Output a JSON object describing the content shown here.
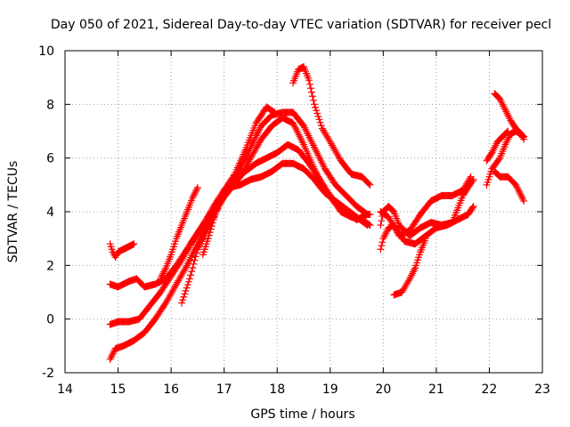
{
  "chart_data": {
    "type": "scatter",
    "title": "Day 050 of 2021, Sidereal Day-to-day VTEC variation (SDTVAR) for receiver pecl",
    "xlabel": "GPS time / hours",
    "ylabel": "SDTVAR / TECUs",
    "xlim": [
      14,
      23
    ],
    "ylim": [
      -2,
      10
    ],
    "xticks": [
      "14",
      "15",
      "16",
      "17",
      "18",
      "19",
      "20",
      "21",
      "22",
      "23"
    ],
    "yticks": [
      "-2",
      "0",
      "2",
      "4",
      "6",
      "8",
      "10"
    ],
    "grid": true,
    "marker": "+",
    "color": "#ff0000",
    "series": [
      {
        "name": "track-1",
        "points": [
          [
            14.85,
            2.8
          ],
          [
            14.9,
            2.5
          ],
          [
            14.95,
            2.3
          ],
          [
            15.0,
            2.5
          ],
          [
            15.1,
            2.6
          ],
          [
            15.2,
            2.7
          ],
          [
            15.3,
            2.8
          ]
        ]
      },
      {
        "name": "track-2",
        "points": [
          [
            14.85,
            1.3
          ],
          [
            15.0,
            1.2
          ],
          [
            15.2,
            1.4
          ],
          [
            15.35,
            1.5
          ],
          [
            15.5,
            1.2
          ],
          [
            15.7,
            1.3
          ],
          [
            15.9,
            1.5
          ],
          [
            16.1,
            2.0
          ],
          [
            16.3,
            2.6
          ],
          [
            16.5,
            3.2
          ],
          [
            16.7,
            3.8
          ],
          [
            16.9,
            4.4
          ],
          [
            17.1,
            4.9
          ],
          [
            17.3,
            5.0
          ],
          [
            17.5,
            5.2
          ],
          [
            17.7,
            5.3
          ],
          [
            17.9,
            5.5
          ],
          [
            18.1,
            5.8
          ],
          [
            18.3,
            5.8
          ],
          [
            18.5,
            5.6
          ],
          [
            18.7,
            5.2
          ],
          [
            18.9,
            4.7
          ],
          [
            19.1,
            4.4
          ],
          [
            19.3,
            4.1
          ],
          [
            19.5,
            3.8
          ],
          [
            19.7,
            3.5
          ]
        ]
      },
      {
        "name": "track-3",
        "points": [
          [
            14.85,
            -0.2
          ],
          [
            15.0,
            -0.1
          ],
          [
            15.2,
            -0.1
          ],
          [
            15.4,
            0.0
          ],
          [
            15.6,
            0.5
          ],
          [
            15.8,
            1.0
          ],
          [
            16.0,
            1.6
          ],
          [
            16.2,
            2.2
          ],
          [
            16.4,
            2.9
          ],
          [
            16.6,
            3.5
          ],
          [
            16.8,
            4.2
          ],
          [
            17.0,
            4.8
          ],
          [
            17.2,
            5.2
          ],
          [
            17.4,
            5.5
          ],
          [
            17.6,
            5.8
          ],
          [
            17.8,
            6.0
          ],
          [
            18.0,
            6.2
          ],
          [
            18.2,
            6.5
          ],
          [
            18.4,
            6.3
          ],
          [
            18.6,
            5.8
          ],
          [
            18.8,
            5.2
          ],
          [
            19.0,
            4.6
          ],
          [
            19.2,
            4.0
          ],
          [
            19.4,
            3.8
          ],
          [
            19.6,
            3.7
          ],
          [
            19.75,
            3.5
          ]
        ]
      },
      {
        "name": "track-4",
        "points": [
          [
            14.85,
            -1.5
          ],
          [
            14.95,
            -1.1
          ],
          [
            15.1,
            -1.0
          ],
          [
            15.3,
            -0.8
          ],
          [
            15.5,
            -0.5
          ],
          [
            15.7,
            0.0
          ],
          [
            15.9,
            0.6
          ],
          [
            16.1,
            1.3
          ],
          [
            16.3,
            2.0
          ],
          [
            16.5,
            2.8
          ],
          [
            16.7,
            3.6
          ],
          [
            16.9,
            4.3
          ],
          [
            17.1,
            4.8
          ],
          [
            17.3,
            5.3
          ],
          [
            17.5,
            6.0
          ],
          [
            17.7,
            6.7
          ],
          [
            17.9,
            7.2
          ],
          [
            18.1,
            7.5
          ],
          [
            18.3,
            7.3
          ],
          [
            18.5,
            6.5
          ],
          [
            18.7,
            5.6
          ],
          [
            18.9,
            4.8
          ],
          [
            19.1,
            4.3
          ],
          [
            19.3,
            4.0
          ],
          [
            19.5,
            3.7
          ],
          [
            19.7,
            3.9
          ]
        ]
      },
      {
        "name": "track-5",
        "points": [
          [
            16.2,
            0.6
          ],
          [
            16.35,
            1.5
          ],
          [
            16.5,
            2.6
          ],
          [
            16.7,
            3.4
          ],
          [
            16.9,
            4.2
          ],
          [
            17.1,
            4.9
          ],
          [
            17.3,
            5.6
          ],
          [
            17.5,
            6.4
          ],
          [
            17.7,
            7.2
          ],
          [
            17.9,
            7.6
          ],
          [
            18.1,
            7.7
          ],
          [
            18.3,
            7.7
          ],
          [
            18.5,
            7.2
          ],
          [
            18.7,
            6.4
          ],
          [
            18.9,
            5.6
          ],
          [
            19.1,
            5.0
          ],
          [
            19.3,
            4.6
          ],
          [
            19.5,
            4.2
          ],
          [
            19.7,
            3.9
          ],
          [
            19.75,
            3.9
          ]
        ]
      },
      {
        "name": "track-6",
        "points": [
          [
            15.8,
            1.5
          ],
          [
            15.9,
            1.9
          ],
          [
            16.0,
            2.4
          ],
          [
            16.1,
            3.0
          ],
          [
            16.2,
            3.5
          ],
          [
            16.3,
            4.0
          ],
          [
            16.4,
            4.5
          ],
          [
            16.5,
            4.9
          ]
        ]
      },
      {
        "name": "track-7",
        "points": [
          [
            16.6,
            2.4
          ],
          [
            16.7,
            3.0
          ],
          [
            16.8,
            3.7
          ],
          [
            16.9,
            4.3
          ],
          [
            17.0,
            4.8
          ],
          [
            17.2,
            5.4
          ],
          [
            17.4,
            6.3
          ],
          [
            17.6,
            7.3
          ],
          [
            17.8,
            7.9
          ],
          [
            17.95,
            7.7
          ]
        ]
      },
      {
        "name": "track-8",
        "points": [
          [
            18.3,
            8.8
          ],
          [
            18.4,
            9.3
          ],
          [
            18.5,
            9.4
          ],
          [
            18.6,
            8.9
          ],
          [
            18.7,
            8.0
          ],
          [
            18.85,
            7.1
          ],
          [
            19.0,
            6.6
          ],
          [
            19.2,
            5.9
          ],
          [
            19.4,
            5.4
          ],
          [
            19.6,
            5.3
          ],
          [
            19.75,
            5.0
          ]
        ]
      },
      {
        "name": "track-9",
        "points": [
          [
            19.95,
            2.6
          ],
          [
            20.0,
            3.0
          ],
          [
            20.1,
            3.4
          ],
          [
            20.2,
            3.5
          ],
          [
            20.3,
            3.2
          ],
          [
            20.4,
            2.9
          ],
          [
            20.6,
            2.8
          ],
          [
            20.8,
            3.1
          ],
          [
            21.0,
            3.4
          ],
          [
            21.2,
            3.5
          ],
          [
            21.4,
            3.7
          ],
          [
            21.6,
            3.9
          ],
          [
            21.7,
            4.2
          ]
        ]
      },
      {
        "name": "track-10",
        "points": [
          [
            19.95,
            3.5
          ],
          [
            20.0,
            4.0
          ],
          [
            20.1,
            4.2
          ],
          [
            20.2,
            4.0
          ],
          [
            20.3,
            3.5
          ],
          [
            20.5,
            3.1
          ],
          [
            20.7,
            3.4
          ],
          [
            20.9,
            3.6
          ],
          [
            21.1,
            3.5
          ],
          [
            21.3,
            3.6
          ],
          [
            21.5,
            4.6
          ],
          [
            21.7,
            5.2
          ]
        ]
      },
      {
        "name": "track-11",
        "points": [
          [
            19.95,
            4.0
          ],
          [
            20.1,
            3.8
          ],
          [
            20.3,
            3.1
          ],
          [
            20.5,
            3.3
          ],
          [
            20.7,
            3.9
          ],
          [
            20.9,
            4.4
          ],
          [
            21.1,
            4.6
          ],
          [
            21.3,
            4.6
          ],
          [
            21.5,
            4.8
          ],
          [
            21.65,
            5.3
          ]
        ]
      },
      {
        "name": "track-12",
        "points": [
          [
            20.2,
            0.9
          ],
          [
            20.35,
            1.0
          ],
          [
            20.5,
            1.5
          ],
          [
            20.6,
            1.9
          ],
          [
            20.7,
            2.5
          ],
          [
            20.8,
            3.0
          ]
        ]
      },
      {
        "name": "track-13",
        "points": [
          [
            22.1,
            8.4
          ],
          [
            22.2,
            8.2
          ],
          [
            22.3,
            7.8
          ],
          [
            22.4,
            7.4
          ],
          [
            22.5,
            7.1
          ],
          [
            22.6,
            6.9
          ],
          [
            22.65,
            6.7
          ]
        ]
      },
      {
        "name": "track-14",
        "points": [
          [
            21.95,
            5.0
          ],
          [
            22.05,
            5.6
          ],
          [
            22.2,
            6.0
          ],
          [
            22.3,
            6.5
          ],
          [
            22.4,
            6.9
          ],
          [
            22.5,
            7.0
          ],
          [
            22.65,
            6.8
          ]
        ]
      },
      {
        "name": "track-15",
        "points": [
          [
            21.95,
            5.9
          ],
          [
            22.05,
            6.2
          ],
          [
            22.15,
            6.6
          ],
          [
            22.25,
            6.8
          ],
          [
            22.35,
            7.0
          ]
        ]
      },
      {
        "name": "track-16",
        "points": [
          [
            22.1,
            5.5
          ],
          [
            22.2,
            5.3
          ],
          [
            22.35,
            5.3
          ],
          [
            22.5,
            5.0
          ],
          [
            22.6,
            4.6
          ],
          [
            22.65,
            4.4
          ]
        ]
      }
    ]
  }
}
